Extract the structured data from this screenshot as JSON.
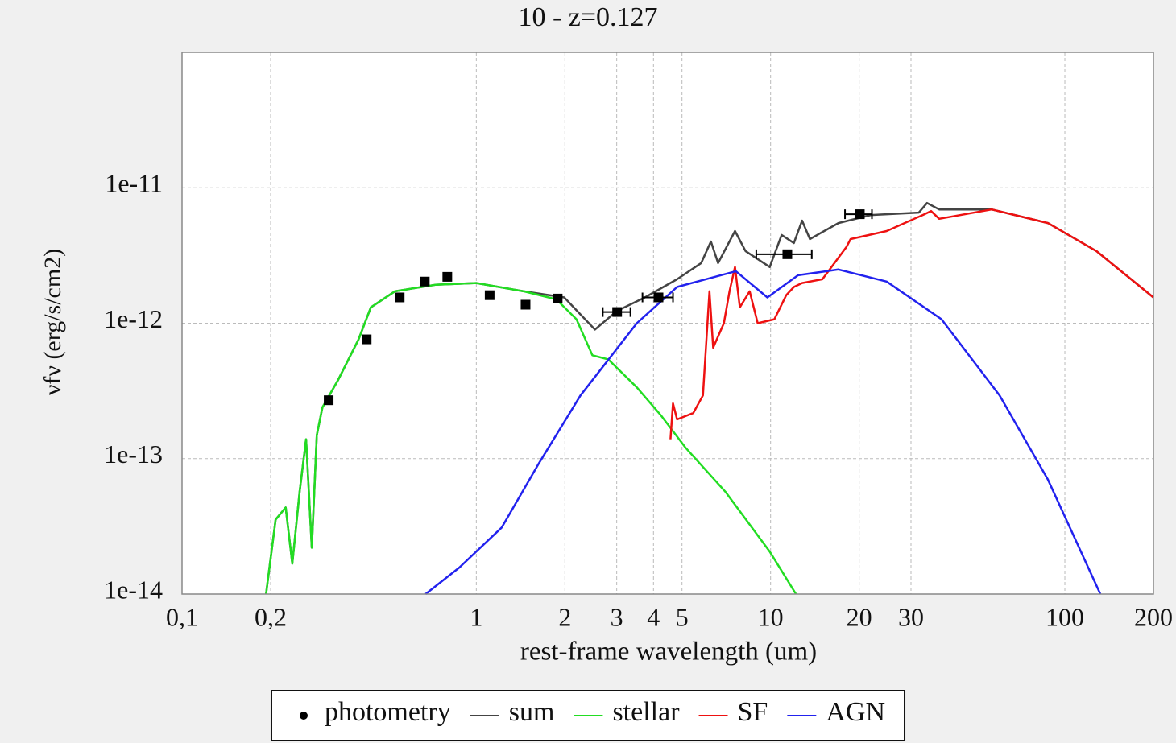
{
  "chart_data": {
    "type": "line",
    "title": "10 - z=0.127",
    "xlabel": "rest-frame wavelength (um)",
    "ylabel": "νfν (erg/s/cm2)",
    "xscale": "log",
    "yscale": "log",
    "xlim": [
      0.1,
      200
    ],
    "ylim": [
      1e-14,
      1e-10
    ],
    "xticks": [
      {
        "value": 0.1,
        "label": "0,1"
      },
      {
        "value": 0.2,
        "label": "0,2"
      },
      1,
      2,
      3,
      4,
      5,
      10,
      20,
      30,
      100,
      200
    ],
    "yticks": [
      1e-14,
      1e-13,
      1e-12,
      1e-11
    ],
    "grid": true,
    "legend": "bottom",
    "series": [
      {
        "name": "photometry",
        "type": "scatter",
        "color": "#000000",
        "x": [
          0.315,
          0.424,
          0.549,
          0.668,
          0.797,
          1.11,
          1.47,
          1.89,
          3.01,
          4.16,
          11.4,
          20.1
        ],
        "values": [
          2.7e-13,
          7.6e-13,
          1.55e-12,
          2.03e-12,
          2.2e-12,
          1.61e-12,
          1.37e-12,
          1.52e-12,
          1.21e-12,
          1.55e-12,
          3.23e-12,
          6.38e-12
        ],
        "xerr": [
          null,
          null,
          null,
          null,
          null,
          null,
          null,
          null,
          [
            2.69,
            3.34
          ],
          [
            3.67,
            4.66
          ],
          [
            8.94,
            13.8
          ],
          [
            17.9,
            22.1
          ]
        ]
      },
      {
        "name": "sum",
        "type": "line",
        "color": "#444444",
        "x": [
          0.193,
          0.208,
          0.225,
          0.237,
          0.251,
          0.264,
          0.276,
          0.287,
          0.3,
          0.34,
          0.398,
          0.438,
          0.529,
          0.725,
          1,
          1.45,
          1.99,
          2.53,
          3.0,
          3.74,
          4.81,
          5.81,
          6.27,
          6.63,
          7.57,
          8.22,
          9.93,
          10.9,
          12.0,
          12.8,
          13.6,
          17.0,
          21.9,
          31.9,
          34.0,
          37.4,
          56.4,
          87.6,
          128,
          200
        ],
        "values": [
          1e-14,
          3.55e-14,
          4.36e-14,
          1.68e-14,
          5.7e-14,
          1.39e-13,
          2.2e-14,
          1.49e-13,
          2.39e-13,
          3.85e-13,
          7.6e-13,
          1.31e-12,
          1.72e-12,
          1.92e-12,
          1.98e-12,
          1.72e-12,
          1.55e-12,
          8.97e-13,
          1.23e-12,
          1.55e-12,
          2.11e-12,
          2.78e-12,
          4.01e-12,
          2.78e-12,
          4.79e-12,
          3.41e-12,
          2.6e-12,
          4.48e-12,
          3.91e-12,
          5.72e-12,
          4.18e-12,
          5.49e-12,
          6.29e-12,
          6.56e-12,
          7.72e-12,
          6.92e-12,
          6.92e-12,
          5.49e-12,
          3.41e-12,
          1.55e-12
        ]
      },
      {
        "name": "stellar",
        "type": "line",
        "color": "#22dd22",
        "x": [
          0.193,
          0.208,
          0.225,
          0.237,
          0.251,
          0.264,
          0.276,
          0.287,
          0.3,
          0.34,
          0.398,
          0.438,
          0.529,
          0.725,
          1,
          1.45,
          1.87,
          2.19,
          2.48,
          2.81,
          3.51,
          4.24,
          5.13,
          7.02,
          9.93,
          12.2
        ],
        "values": [
          1e-14,
          3.55e-14,
          4.36e-14,
          1.68e-14,
          5.7e-14,
          1.39e-13,
          2.2e-14,
          1.49e-13,
          2.39e-13,
          3.85e-13,
          7.6e-13,
          1.31e-12,
          1.72e-12,
          1.92e-12,
          1.98e-12,
          1.72e-12,
          1.5e-12,
          1.07e-12,
          5.8e-13,
          5.4e-13,
          3.36e-13,
          2.09e-13,
          1.21e-13,
          5.7e-14,
          2.06e-14,
          1e-14
        ]
      },
      {
        "name": "SF",
        "type": "line",
        "color": "#ee1111",
        "x": [
          4.57,
          4.66,
          4.81,
          5.46,
          5.89,
          6.2,
          6.38,
          6.94,
          7.25,
          7.57,
          7.86,
          8.49,
          9.04,
          10.3,
          11.3,
          12.0,
          12.8,
          15.0,
          18.1,
          18.7,
          24.8,
          32.9,
          35.1,
          37.4,
          56.4,
          87.6,
          128,
          200
        ],
        "values": [
          1.39e-13,
          2.56e-13,
          1.95e-13,
          2.17e-13,
          2.93e-13,
          1.72e-12,
          6.6e-13,
          1e-12,
          1.72e-12,
          2.6e-12,
          1.31e-12,
          1.72e-12,
          1e-12,
          1.07e-12,
          1.61e-12,
          1.85e-12,
          1.98e-12,
          2.11e-12,
          3.65e-12,
          4.18e-12,
          4.79e-12,
          6.29e-12,
          6.73e-12,
          5.9e-12,
          6.92e-12,
          5.49e-12,
          3.41e-12,
          1.55e-12
        ]
      },
      {
        "name": "AGN",
        "type": "line",
        "color": "#2222ee",
        "x": [
          0.672,
          0.876,
          1.22,
          1.63,
          2.26,
          3.51,
          4.81,
          7.62,
          9.75,
          12.4,
          17.0,
          24.8,
          38.1,
          60.0,
          87.6,
          132
        ],
        "values": [
          1e-14,
          1.57e-14,
          3.1e-14,
          9.2e-14,
          2.93e-13,
          1e-12,
          1.85e-12,
          2.42e-12,
          1.55e-12,
          2.26e-12,
          2.49e-12,
          2.03e-12,
          1.07e-12,
          2.93e-13,
          7e-14,
          1e-14
        ]
      }
    ]
  }
}
